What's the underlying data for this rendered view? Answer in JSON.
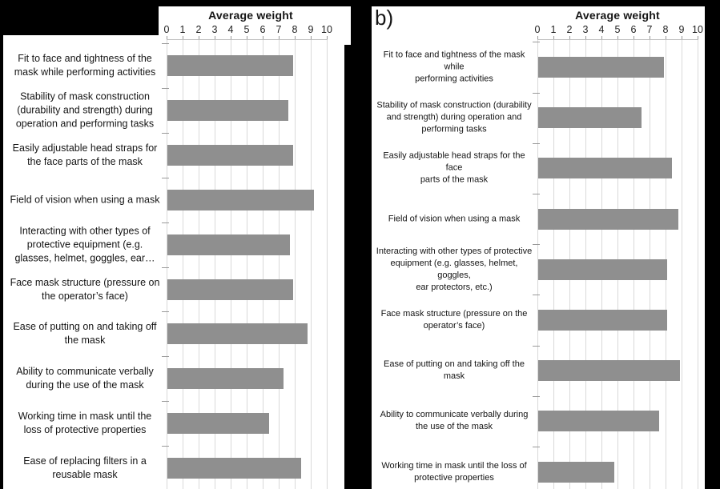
{
  "colors": {
    "bar": "#8f8f8f",
    "gridline": "#d9d9d9",
    "axis_line": "#bfbfbf",
    "tick_mark": "#9a9a9a",
    "panel_background": "#ffffff",
    "page_background": "#000000",
    "text": "#151515"
  },
  "chart_data": [
    {
      "type": "bar",
      "orientation": "horizontal",
      "title": "Average weight",
      "xlabel": "",
      "ylabel": "",
      "xlim": [
        0,
        10
      ],
      "x_ticks": [
        "0",
        "1",
        "2",
        "3",
        "4",
        "5",
        "6",
        "7",
        "8",
        "9",
        "10"
      ],
      "grid": true,
      "legend": false,
      "categories": [
        "Fit to face and tightness of the mask while performing activities",
        "Stability of mask construction (durability and strength) during operation and performing tasks",
        "Easily adjustable head straps for the face parts of the mask",
        "Field of vision when using a mask",
        "Interacting with other types of protective equipment (e.g. glasses, helmet, goggles, ear…",
        "Face mask structure (pressure on the operator’s face)",
        "Ease of putting on and taking off the mask",
        "Ability to communicate verbally during the use of the mask",
        "Working time in mask until the loss of protective properties",
        "Ease of replacing filters in a reusable mask"
      ],
      "label_lines": [
        [
          "Fit to face and tightness of the",
          "mask while performing activities"
        ],
        [
          "Stability of mask construction",
          "(durability and strength) during",
          "operation and performing tasks"
        ],
        [
          "Easily adjustable head straps for",
          "the face parts of the mask"
        ],
        [
          "Field of vision when using a mask"
        ],
        [
          "Interacting with other types of",
          "protective equipment (e.g.",
          "glasses, helmet, goggles, ear…"
        ],
        [
          "Face mask structure (pressure on",
          "the operator’s face)"
        ],
        [
          "Ease of putting on and taking off",
          "the mask"
        ],
        [
          "Ability to communicate verbally",
          "during the use of the mask"
        ],
        [
          "Working time in mask until the",
          "loss of protective properties"
        ],
        [
          "Ease of replacing filters in a",
          "reusable mask"
        ]
      ],
      "values": [
        7.9,
        7.6,
        7.9,
        9.2,
        7.7,
        7.9,
        8.8,
        7.3,
        6.4,
        8.4
      ]
    },
    {
      "type": "bar",
      "orientation": "horizontal",
      "panel_label": "b)",
      "title": "Average weight",
      "xlabel": "",
      "ylabel": "",
      "xlim": [
        0,
        10
      ],
      "x_ticks": [
        "0",
        "1",
        "2",
        "3",
        "4",
        "5",
        "6",
        "7",
        "8",
        "9",
        "10"
      ],
      "grid": true,
      "legend": false,
      "categories": [
        "Fit to face and tightness of the mask while performing activities",
        "Stability of mask construction (durability and strength) during operation and performing tasks",
        "Easily adjustable head straps for the face parts of the mask",
        "Field of vision when using a mask",
        "Interacting with other types of protective equipment (e.g. glasses, helmet, goggles, ear protectors, etc.)",
        "Face mask structure (pressure on the operator’s face)",
        "Ease of putting on and taking off the mask",
        "Ability to communicate verbally during the use of the mask",
        "Working time in mask until the loss of protective properties"
      ],
      "label_lines": [
        [
          "Fit to face and tightness of the mask while",
          "performing activities"
        ],
        [
          "Stability of mask construction (durability",
          "and strength) during operation and",
          "performing tasks"
        ],
        [
          "Easily adjustable head straps for the face",
          "parts of the mask"
        ],
        [
          "Field of vision when using a mask"
        ],
        [
          "Interacting with other types of protective",
          "equipment (e.g. glasses, helmet, goggles,",
          "ear protectors, etc.)"
        ],
        [
          "Face mask structure (pressure on the",
          "operator’s face)"
        ],
        [
          "Ease of putting on and taking off the mask"
        ],
        [
          "Ability to communicate verbally during",
          "the use of the mask"
        ],
        [
          "Working time in mask until the loss of",
          "protective properties"
        ]
      ],
      "values": [
        7.9,
        6.5,
        8.4,
        8.8,
        8.1,
        8.1,
        8.9,
        7.6,
        4.8
      ]
    }
  ]
}
